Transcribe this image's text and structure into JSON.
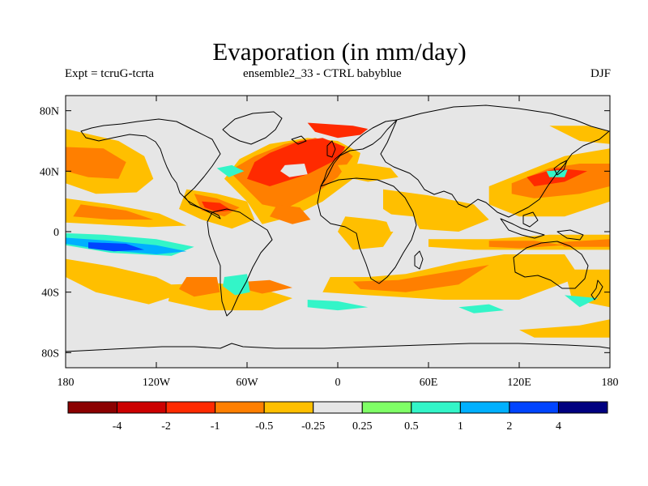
{
  "title": "Evaporation (in mm/day)",
  "subtitle_left": "Expt = tcruG-tcrta",
  "subtitle_center": "ensemble2_33 - CTRL babyblue",
  "subtitle_right": "DJF",
  "map": {
    "projection": "cylindrical-equidistant",
    "lon_range": [
      -180,
      180
    ],
    "lat_range": [
      -90,
      90
    ],
    "background_color": "#e6e6e6",
    "lat_ticks": [
      {
        "value": 80,
        "label": "80N"
      },
      {
        "value": 40,
        "label": "40N"
      },
      {
        "value": 0,
        "label": "0"
      },
      {
        "value": -40,
        "label": "40S"
      },
      {
        "value": -80,
        "label": "80S"
      }
    ],
    "lon_ticks": [
      {
        "value": -180,
        "label": "180"
      },
      {
        "value": -120,
        "label": "120W"
      },
      {
        "value": -60,
        "label": "60W"
      },
      {
        "value": 0,
        "label": "0"
      },
      {
        "value": 60,
        "label": "60E"
      },
      {
        "value": 120,
        "label": "120E"
      },
      {
        "value": 180,
        "label": "180"
      }
    ]
  },
  "colorbar": {
    "colors": [
      "#8b0000",
      "#cc0000",
      "#ff2a00",
      "#ff7f00",
      "#ffbf00",
      "#e6e6e6",
      "#7fff66",
      "#33f5c8",
      "#00b0ff",
      "#0044ff",
      "#000080"
    ],
    "labels": [
      "-4",
      "-2",
      "-1",
      "-0.5",
      "-0.25",
      "0.25",
      "0.5",
      "1",
      "2",
      "4"
    ]
  },
  "chart_data": {
    "type": "heatmap",
    "title": "Evaporation (in mm/day)",
    "units": "mm/day",
    "season": "DJF",
    "xlabel": "",
    "ylabel": "",
    "xlim": [
      -180,
      180
    ],
    "ylim": [
      -90,
      90
    ],
    "levels": [
      -4,
      -2,
      -1,
      -0.5,
      -0.25,
      0.25,
      0.5,
      1,
      2,
      4
    ],
    "regions": [
      {
        "value": -0.5,
        "points": [
          [
            -180,
            68
          ],
          [
            -145,
            60
          ],
          [
            -128,
            50
          ],
          [
            -122,
            35
          ],
          [
            -133,
            26
          ],
          [
            -160,
            25
          ],
          [
            -180,
            32
          ]
        ]
      },
      {
        "value": -1,
        "points": [
          [
            -180,
            56
          ],
          [
            -155,
            55
          ],
          [
            -140,
            46
          ],
          [
            -145,
            35
          ],
          [
            -165,
            36
          ],
          [
            -180,
            40
          ]
        ]
      },
      {
        "value": -0.5,
        "points": [
          [
            -180,
            22
          ],
          [
            -150,
            18
          ],
          [
            -118,
            12
          ],
          [
            -100,
            4
          ],
          [
            -125,
            3
          ],
          [
            -160,
            5
          ],
          [
            -180,
            6
          ]
        ]
      },
      {
        "value": -1,
        "points": [
          [
            -170,
            18
          ],
          [
            -140,
            14
          ],
          [
            -122,
            8
          ],
          [
            -150,
            8
          ],
          [
            -175,
            10
          ]
        ]
      },
      {
        "value": 0.5,
        "points": [
          [
            -180,
            -1
          ],
          [
            -155,
            -2
          ],
          [
            -120,
            -5
          ],
          [
            -95,
            -10
          ],
          [
            -110,
            -16
          ],
          [
            -150,
            -14
          ],
          [
            -180,
            -9
          ]
        ]
      },
      {
        "value": 1,
        "points": [
          [
            -180,
            -4
          ],
          [
            -150,
            -6
          ],
          [
            -120,
            -9
          ],
          [
            -100,
            -13
          ],
          [
            -120,
            -15
          ],
          [
            -155,
            -12
          ],
          [
            -180,
            -8
          ]
        ]
      },
      {
        "value": 2,
        "points": [
          [
            -165,
            -7
          ],
          [
            -140,
            -8
          ],
          [
            -128,
            -12
          ],
          [
            -148,
            -13
          ],
          [
            -165,
            -11
          ]
        ]
      },
      {
        "value": -0.5,
        "points": [
          [
            -180,
            -18
          ],
          [
            -150,
            -23
          ],
          [
            -120,
            -30
          ],
          [
            -100,
            -40
          ],
          [
            -125,
            -48
          ],
          [
            -160,
            -40
          ],
          [
            -180,
            -30
          ]
        ]
      },
      {
        "value": -0.5,
        "points": [
          [
            -110,
            -35
          ],
          [
            -80,
            -34
          ],
          [
            -50,
            -38
          ],
          [
            -30,
            -44
          ],
          [
            -50,
            -52
          ],
          [
            -85,
            -52
          ],
          [
            -112,
            -46
          ]
        ]
      },
      {
        "value": -1,
        "points": [
          [
            -100,
            -30
          ],
          [
            -80,
            -30
          ],
          [
            -78,
            -40
          ],
          [
            -95,
            -43
          ],
          [
            -105,
            -38
          ]
        ]
      },
      {
        "value": -1,
        "points": [
          [
            -60,
            -33
          ],
          [
            -45,
            -32
          ],
          [
            -30,
            -37
          ],
          [
            -50,
            -41
          ],
          [
            -62,
            -38
          ]
        ]
      },
      {
        "value": -0.25,
        "points": [
          [
            -130,
            -52
          ],
          [
            -70,
            -55
          ],
          [
            -40,
            -58
          ],
          [
            -60,
            -62
          ],
          [
            -120,
            -60
          ]
        ]
      },
      {
        "value": 0.5,
        "points": [
          [
            -75,
            -30
          ],
          [
            -60,
            -28
          ],
          [
            -58,
            -40
          ],
          [
            -68,
            -42
          ],
          [
            -76,
            -36
          ]
        ]
      },
      {
        "value": -0.5,
        "points": [
          [
            -100,
            28
          ],
          [
            -80,
            25
          ],
          [
            -60,
            20
          ],
          [
            -55,
            8
          ],
          [
            -70,
            2
          ],
          [
            -90,
            8
          ],
          [
            -105,
            15
          ]
        ]
      },
      {
        "value": -1,
        "points": [
          [
            -95,
            25
          ],
          [
            -80,
            22
          ],
          [
            -65,
            16
          ],
          [
            -75,
            10
          ],
          [
            -90,
            14
          ]
        ]
      },
      {
        "value": -2,
        "points": [
          [
            -90,
            20
          ],
          [
            -78,
            19
          ],
          [
            -70,
            14
          ],
          [
            -80,
            13
          ],
          [
            -88,
            16
          ]
        ]
      },
      {
        "value": -0.5,
        "points": [
          [
            -65,
            48
          ],
          [
            -45,
            58
          ],
          [
            -20,
            62
          ],
          [
            0,
            60
          ],
          [
            15,
            52
          ],
          [
            10,
            35
          ],
          [
            -10,
            20
          ],
          [
            -30,
            10
          ],
          [
            -50,
            5
          ],
          [
            -60,
            20
          ],
          [
            -75,
            35
          ]
        ]
      },
      {
        "value": -1,
        "points": [
          [
            -55,
            50
          ],
          [
            -35,
            58
          ],
          [
            -15,
            62
          ],
          [
            0,
            58
          ],
          [
            10,
            50
          ],
          [
            0,
            36
          ],
          [
            -15,
            25
          ],
          [
            -35,
            15
          ],
          [
            -50,
            18
          ],
          [
            -62,
            30
          ],
          [
            -72,
            40
          ]
        ]
      },
      {
        "value": -2,
        "points": [
          [
            -45,
            52
          ],
          [
            -25,
            60
          ],
          [
            -10,
            62
          ],
          [
            5,
            56
          ],
          [
            0,
            48
          ],
          [
            -20,
            38
          ],
          [
            -45,
            30
          ],
          [
            -60,
            35
          ],
          [
            -55,
            46
          ]
        ]
      },
      {
        "value": -2,
        "points": [
          [
            -20,
            72
          ],
          [
            10,
            70
          ],
          [
            20,
            68
          ],
          [
            15,
            64
          ],
          [
            0,
            62
          ],
          [
            -15,
            66
          ]
        ]
      },
      {
        "value": -0.25,
        "points": [
          [
            -35,
            44
          ],
          [
            -22,
            45
          ],
          [
            -20,
            38
          ],
          [
            -32,
            36
          ],
          [
            -38,
            40
          ]
        ]
      },
      {
        "value": 0.5,
        "points": [
          [
            -80,
            42
          ],
          [
            -70,
            44
          ],
          [
            -62,
            40
          ],
          [
            -72,
            36
          ]
        ]
      },
      {
        "value": -1,
        "points": [
          [
            -40,
            18
          ],
          [
            -25,
            16
          ],
          [
            -18,
            8
          ],
          [
            -30,
            5
          ],
          [
            -45,
            10
          ]
        ]
      },
      {
        "value": -0.5,
        "points": [
          [
            0,
            44
          ],
          [
            15,
            45
          ],
          [
            35,
            42
          ],
          [
            40,
            36
          ],
          [
            20,
            33
          ],
          [
            5,
            36
          ]
        ]
      },
      {
        "value": -0.5,
        "points": [
          [
            5,
            10
          ],
          [
            25,
            8
          ],
          [
            40,
            5
          ],
          [
            30,
            -10
          ],
          [
            10,
            -12
          ],
          [
            0,
            0
          ]
        ]
      },
      {
        "value": -0.5,
        "points": [
          [
            -5,
            -30
          ],
          [
            20,
            -30
          ],
          [
            45,
            -28
          ],
          [
            80,
            -20
          ],
          [
            110,
            -15
          ],
          [
            150,
            -15
          ],
          [
            160,
            -30
          ],
          [
            120,
            -45
          ],
          [
            70,
            -45
          ],
          [
            20,
            -42
          ],
          [
            -10,
            -40
          ]
        ]
      },
      {
        "value": -1,
        "points": [
          [
            10,
            -33
          ],
          [
            40,
            -32
          ],
          [
            70,
            -27
          ],
          [
            100,
            -22
          ],
          [
            80,
            -35
          ],
          [
            45,
            -40
          ],
          [
            15,
            -38
          ]
        ]
      },
      {
        "value": -0.25,
        "points": [
          [
            -20,
            -15
          ],
          [
            0,
            -14
          ],
          [
            15,
            -20
          ],
          [
            0,
            -25
          ],
          [
            -20,
            -22
          ]
        ]
      },
      {
        "value": -0.5,
        "points": [
          [
            30,
            28
          ],
          [
            60,
            24
          ],
          [
            90,
            18
          ],
          [
            100,
            8
          ],
          [
            80,
            0
          ],
          [
            50,
            2
          ],
          [
            30,
            15
          ]
        ]
      },
      {
        "value": -0.5,
        "points": [
          [
            60,
            -5
          ],
          [
            100,
            -5
          ],
          [
            140,
            -2
          ],
          [
            180,
            -2
          ],
          [
            180,
            -12
          ],
          [
            130,
            -12
          ],
          [
            90,
            -12
          ],
          [
            60,
            -10
          ]
        ]
      },
      {
        "value": -1,
        "points": [
          [
            100,
            -6
          ],
          [
            130,
            -6
          ],
          [
            150,
            -9
          ],
          [
            120,
            -11
          ],
          [
            100,
            -10
          ]
        ]
      },
      {
        "value": -1,
        "points": [
          [
            145,
            -7
          ],
          [
            180,
            -5
          ],
          [
            180,
            -10
          ],
          [
            150,
            -10
          ]
        ]
      },
      {
        "value": -0.5,
        "points": [
          [
            100,
            30
          ],
          [
            130,
            42
          ],
          [
            150,
            50
          ],
          [
            180,
            55
          ],
          [
            180,
            20
          ],
          [
            150,
            10
          ],
          [
            120,
            10
          ],
          [
            100,
            18
          ]
        ]
      },
      {
        "value": -1,
        "points": [
          [
            115,
            32
          ],
          [
            140,
            42
          ],
          [
            160,
            45
          ],
          [
            180,
            45
          ],
          [
            180,
            30
          ],
          [
            160,
            25
          ],
          [
            130,
            22
          ],
          [
            115,
            25
          ]
        ]
      },
      {
        "value": -2,
        "points": [
          [
            125,
            36
          ],
          [
            145,
            42
          ],
          [
            165,
            40
          ],
          [
            150,
            33
          ],
          [
            130,
            30
          ]
        ]
      },
      {
        "value": -0.5,
        "points": [
          [
            140,
            70
          ],
          [
            165,
            70
          ],
          [
            180,
            66
          ],
          [
            180,
            58
          ],
          [
            160,
            60
          ]
        ]
      },
      {
        "value": 0.5,
        "points": [
          [
            138,
            40
          ],
          [
            152,
            41
          ],
          [
            150,
            36
          ],
          [
            140,
            36
          ]
        ]
      },
      {
        "value": -0.5,
        "points": [
          [
            150,
            -25
          ],
          [
            180,
            -25
          ],
          [
            180,
            -50
          ],
          [
            155,
            -45
          ]
        ]
      },
      {
        "value": -0.25,
        "points": [
          [
            30,
            12
          ],
          [
            50,
            10
          ],
          [
            55,
            0
          ],
          [
            35,
            0
          ]
        ]
      },
      {
        "value": 0.5,
        "points": [
          [
            -20,
            -45
          ],
          [
            0,
            -46
          ],
          [
            20,
            -50
          ],
          [
            0,
            -52
          ],
          [
            -20,
            -50
          ]
        ]
      },
      {
        "value": 0.5,
        "points": [
          [
            80,
            -50
          ],
          [
            100,
            -48
          ],
          [
            110,
            -52
          ],
          [
            90,
            -54
          ]
        ]
      },
      {
        "value": 0.5,
        "points": [
          [
            150,
            -42
          ],
          [
            172,
            -44
          ],
          [
            160,
            -50
          ]
        ]
      },
      {
        "value": -0.5,
        "points": [
          [
            120,
            -65
          ],
          [
            160,
            -62
          ],
          [
            180,
            -58
          ],
          [
            180,
            -70
          ],
          [
            130,
            -70
          ]
        ]
      }
    ]
  }
}
